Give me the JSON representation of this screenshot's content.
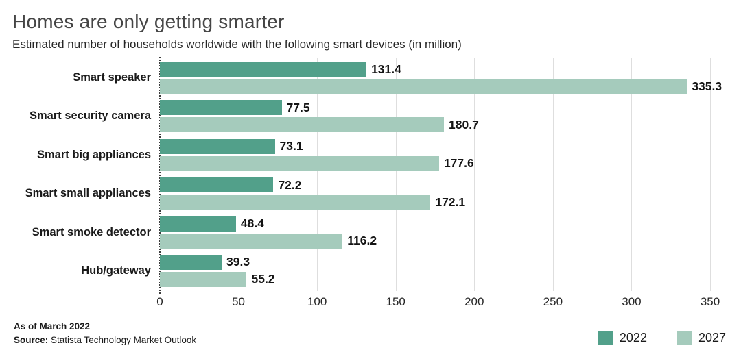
{
  "chart": {
    "title": "Homes are only getting smarter",
    "subtitle": "Estimated number of households worldwide with the following smart devices (in million)"
  },
  "chart_data": {
    "type": "bar",
    "orientation": "horizontal",
    "title": "Homes are only getting smarter",
    "subtitle": "Estimated number of households worldwide with the following smart devices (in million)",
    "categories": [
      "Smart speaker",
      "Smart security camera",
      "Smart big appliances",
      "Smart small appliances",
      "Smart smoke detector",
      "Hub/gateway"
    ],
    "series": [
      {
        "name": "2022",
        "color": "#52a08a",
        "values": [
          131.4,
          77.5,
          73.1,
          72.2,
          48.4,
          39.3
        ]
      },
      {
        "name": "2027",
        "color": "#a5cbbc",
        "values": [
          335.3,
          180.7,
          177.6,
          172.1,
          116.2,
          55.2
        ]
      }
    ],
    "xlabel": "",
    "ylabel": "",
    "xlim": [
      0,
      350
    ],
    "xticks": [
      0,
      50,
      100,
      150,
      200,
      250,
      300,
      350
    ],
    "grid": "vertical-gridlines",
    "zero_axis_style": "dotted-vertical-line",
    "value_labels": "end-of-bar, one decimal",
    "legend_position": "bottom-right"
  },
  "footer": {
    "note_asof": "As of March 2022",
    "source_label": "Source:",
    "source_text": " Statista Technology Market Outlook"
  },
  "colors": {
    "series_2022": "#52a08a",
    "series_2027": "#a5cbbc",
    "gridline": "#dedede",
    "title_text": "#454545"
  }
}
